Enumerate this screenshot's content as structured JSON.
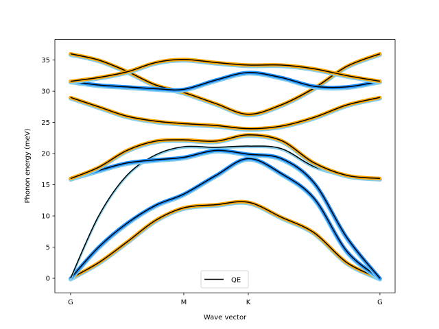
{
  "chart_data": {
    "type": "line",
    "xlabel": "Wave vector",
    "ylabel": "Phonon energy (meV)",
    "xlim": [
      -0.139,
      2.867
    ],
    "ylim": [
      -2.33,
      38.3
    ],
    "x_ticks": [
      {
        "label": "G",
        "pos": 0
      },
      {
        "label": "M",
        "pos": 1.0
      },
      {
        "label": "K",
        "pos": 1.57
      },
      {
        "label": "G",
        "pos": 2.733
      }
    ],
    "y_ticks": [
      0,
      5,
      10,
      15,
      20,
      25,
      30,
      35
    ],
    "grid": false,
    "legend": {
      "placement": "lower-center",
      "entries": [
        {
          "name": "QE",
          "color": "#000000"
        }
      ]
    },
    "colors": {
      "line": "#000000",
      "orange": "#FFA500",
      "blue": "#1E90FF",
      "lightblue": "#87CEEB"
    },
    "x": [
      0,
      0.248,
      0.497,
      0.752,
      1.0,
      1.285,
      1.57,
      1.861,
      2.152,
      2.442,
      2.733
    ],
    "bands": [
      {
        "highlight": "orange",
        "values": [
          0,
          2.5,
          5.8,
          9.3,
          11.3,
          11.8,
          12.2,
          9.8,
          7.3,
          2.5,
          0
        ]
      },
      {
        "highlight": "blue",
        "values": [
          0,
          5,
          8.8,
          11.7,
          13.5,
          16.5,
          19.2,
          16.8,
          12.8,
          4.3,
          0
        ]
      },
      {
        "highlight": "lightblue",
        "values": [
          0,
          10,
          16.5,
          19.8,
          21.1,
          21.0,
          21.2,
          20.8,
          17.9,
          16.5,
          16
        ]
      },
      {
        "highlight": "blue",
        "values": [
          16,
          17.3,
          18.5,
          19.0,
          19.4,
          20.5,
          19.9,
          19.2,
          15.3,
          6.5,
          0
        ]
      },
      {
        "highlight": "orange",
        "values": [
          16,
          17.8,
          20.5,
          22.0,
          22.2,
          22.0,
          23.0,
          22.1,
          18.5,
          16.5,
          16
        ]
      },
      {
        "highlight": "orange",
        "values": [
          29,
          27.5,
          26,
          25.2,
          24.8,
          24.5,
          24.0,
          24.4,
          25.8,
          27.8,
          29
        ]
      },
      {
        "highlight": "orange",
        "values": [
          36,
          35.0,
          33.2,
          31.0,
          29.8,
          28.0,
          26.3,
          27.8,
          30.5,
          34.0,
          36
        ]
      },
      {
        "highlight": "blue",
        "values": [
          31.6,
          31.0,
          30.7,
          30.4,
          30.3,
          31.8,
          33.0,
          32.2,
          30.8,
          30.7,
          31.6
        ]
      },
      {
        "highlight": "orange",
        "values": [
          31.6,
          32.2,
          33.1,
          34.6,
          35.1,
          34.6,
          34.2,
          34.2,
          33.6,
          32.5,
          31.6
        ]
      }
    ]
  }
}
